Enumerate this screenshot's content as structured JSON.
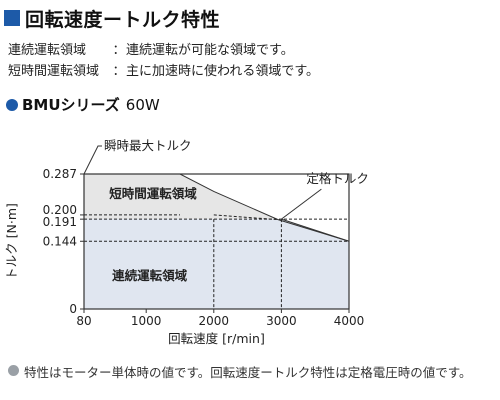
{
  "header": {
    "title": "回転速度ートルク特性"
  },
  "descriptions": [
    {
      "term": "連続運転領域",
      "sep": "：",
      "text": "連続運転が可能な領域です。"
    },
    {
      "term": "短時間運転領域",
      "sep": "：",
      "text": "主に加速時に使われる領域です。"
    }
  ],
  "section": {
    "series": "BMUシリーズ",
    "model": "60W"
  },
  "footnote": "特性はモーター単体時の値です。回転速度ートルク特性は定格電圧時の値です。",
  "chart_data": {
    "type": "area",
    "xlabel": "回転速度 [r/min]",
    "ylabel": "トルク [N·m]",
    "xlim": [
      80,
      4000
    ],
    "ylim": [
      0,
      0.287
    ],
    "x_ticks": [
      80,
      1000,
      2000,
      3000,
      4000
    ],
    "x_tick_labels": [
      "80",
      "1000",
      "2000",
      "3000",
      "4000"
    ],
    "y_ticks": [
      0,
      0.144,
      0.191,
      0.2,
      0.287
    ],
    "y_tick_labels": [
      "0",
      "0.144",
      "0.191",
      "0.200",
      "0.287"
    ],
    "series": [
      {
        "name": "短時間運転領域",
        "x": [
          80,
          1500,
          2000,
          2950,
          4000
        ],
        "y": [
          0.287,
          0.287,
          0.25,
          0.19,
          0.144
        ]
      },
      {
        "name": "連続運転領域",
        "x": [
          80,
          2000,
          3000,
          4000
        ],
        "y": [
          0.191,
          0.191,
          0.191,
          0.144
        ]
      }
    ],
    "annotations": [
      {
        "text": "瞬時最大トルク",
        "x": 80,
        "y": 0.287
      },
      {
        "text": "定格トルク",
        "x": 3000,
        "y": 0.191
      }
    ],
    "colors": {
      "short_time_fill": "#e6e6e6",
      "continuous_fill": "#e0e6f0",
      "frame": "#333333",
      "dashed": "#222222"
    }
  }
}
